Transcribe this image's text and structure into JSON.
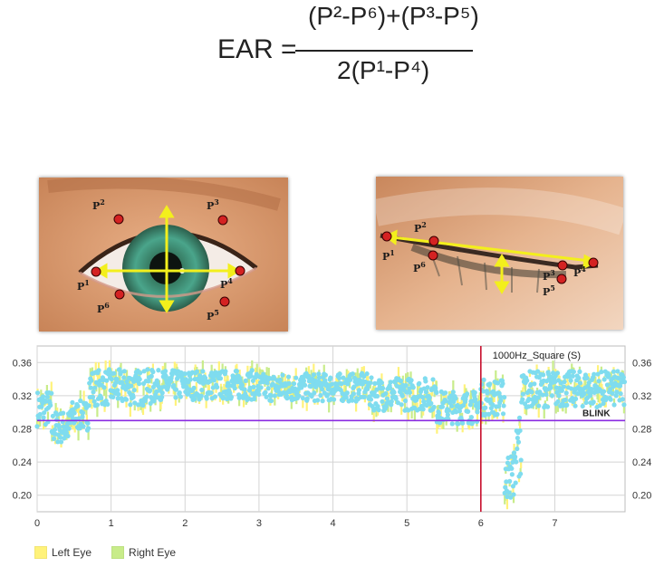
{
  "formula": {
    "lhs": "EAR =",
    "numerator": "(P²-P⁶)+(P³-P⁵)",
    "denominator": "2(P¹-P⁴)"
  },
  "eye_open_labels": [
    "P",
    "P",
    "P",
    "P",
    "P",
    "P"
  ],
  "eye_open_label_sups": [
    "2",
    "3",
    "1",
    "4",
    "6",
    "5"
  ],
  "eye_closed_labels": [
    "P",
    "P",
    "P",
    "P",
    "P",
    "P"
  ],
  "eye_closed_label_sups": [
    "2",
    "1",
    "6",
    "3",
    "4",
    "5"
  ],
  "chart_data": {
    "type": "scatter",
    "x_ticks": [
      "0",
      "1",
      "2",
      "3",
      "4",
      "5",
      "6",
      "7"
    ],
    "y_ticks": [
      "0.20",
      "0.24",
      "0.28",
      "0.32",
      "0.36"
    ],
    "xlim": [
      0,
      7.95
    ],
    "ylim": [
      0.18,
      0.38
    ],
    "threshold": 0.29,
    "threshold_label": "BLINK",
    "marker_x": 6,
    "marker_label": "1000Hz_Square (S)",
    "grid": true,
    "legend_position": "bottom-left",
    "series": [
      {
        "name": "Left Eye",
        "color": "#fff27a"
      },
      {
        "name": "Right Eye",
        "color": "#c8ec8a"
      }
    ],
    "points_color": "#7fdcef",
    "segments": [
      {
        "x": [
          0.0,
          0.2
        ],
        "mean": 0.305,
        "spread": 0.022
      },
      {
        "x": [
          0.2,
          0.45
        ],
        "mean": 0.282,
        "spread": 0.02
      },
      {
        "x": [
          0.45,
          0.7
        ],
        "mean": 0.296,
        "spread": 0.018
      },
      {
        "x": [
          0.7,
          1.6
        ],
        "mean": 0.33,
        "spread": 0.022
      },
      {
        "x": [
          1.6,
          3.0
        ],
        "mean": 0.333,
        "spread": 0.018
      },
      {
        "x": [
          3.0,
          4.5
        ],
        "mean": 0.33,
        "spread": 0.017
      },
      {
        "x": [
          4.5,
          5.4
        ],
        "mean": 0.322,
        "spread": 0.02
      },
      {
        "x": [
          5.4,
          6.0
        ],
        "mean": 0.306,
        "spread": 0.02
      },
      {
        "x": [
          6.0,
          6.35
        ],
        "mean": 0.318,
        "spread": 0.022
      },
      {
        "x": [
          6.35,
          6.55
        ],
        "mean": 0.255,
        "spread": 0.05
      },
      {
        "x": [
          6.55,
          7.95
        ],
        "mean": 0.328,
        "spread": 0.022
      }
    ],
    "blink_dip": {
      "x": 6.4,
      "min": 0.195
    }
  },
  "legend": {
    "left_label": "Left Eye",
    "right_label": "Right Eye"
  }
}
